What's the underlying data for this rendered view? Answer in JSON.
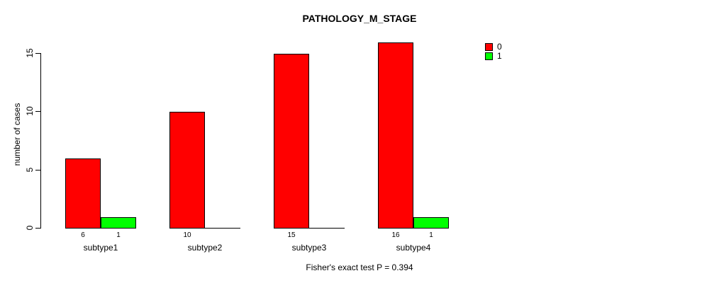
{
  "chart_data": {
    "type": "bar",
    "title": "PATHOLOGY_M_STAGE",
    "xlabel": "",
    "ylabel": "number of cases",
    "categories": [
      "subtype1",
      "subtype2",
      "subtype3",
      "subtype4"
    ],
    "series": [
      {
        "name": "0",
        "color": "#ff0000",
        "values": [
          6,
          10,
          15,
          16
        ]
      },
      {
        "name": "1",
        "color": "#00ff00",
        "values": [
          1,
          0,
          0,
          1
        ]
      }
    ],
    "yticks": [
      0,
      5,
      10,
      15
    ],
    "ylim": [
      0,
      15
    ],
    "grid": false,
    "legend_position": "top-right",
    "bar_value_labels_shown": true,
    "zero_bars_drawn_as_baseline": true,
    "footnote": "Fisher's exact test P = 0.394",
    "background_color": "#ffffff",
    "axis_color": "#000000"
  }
}
